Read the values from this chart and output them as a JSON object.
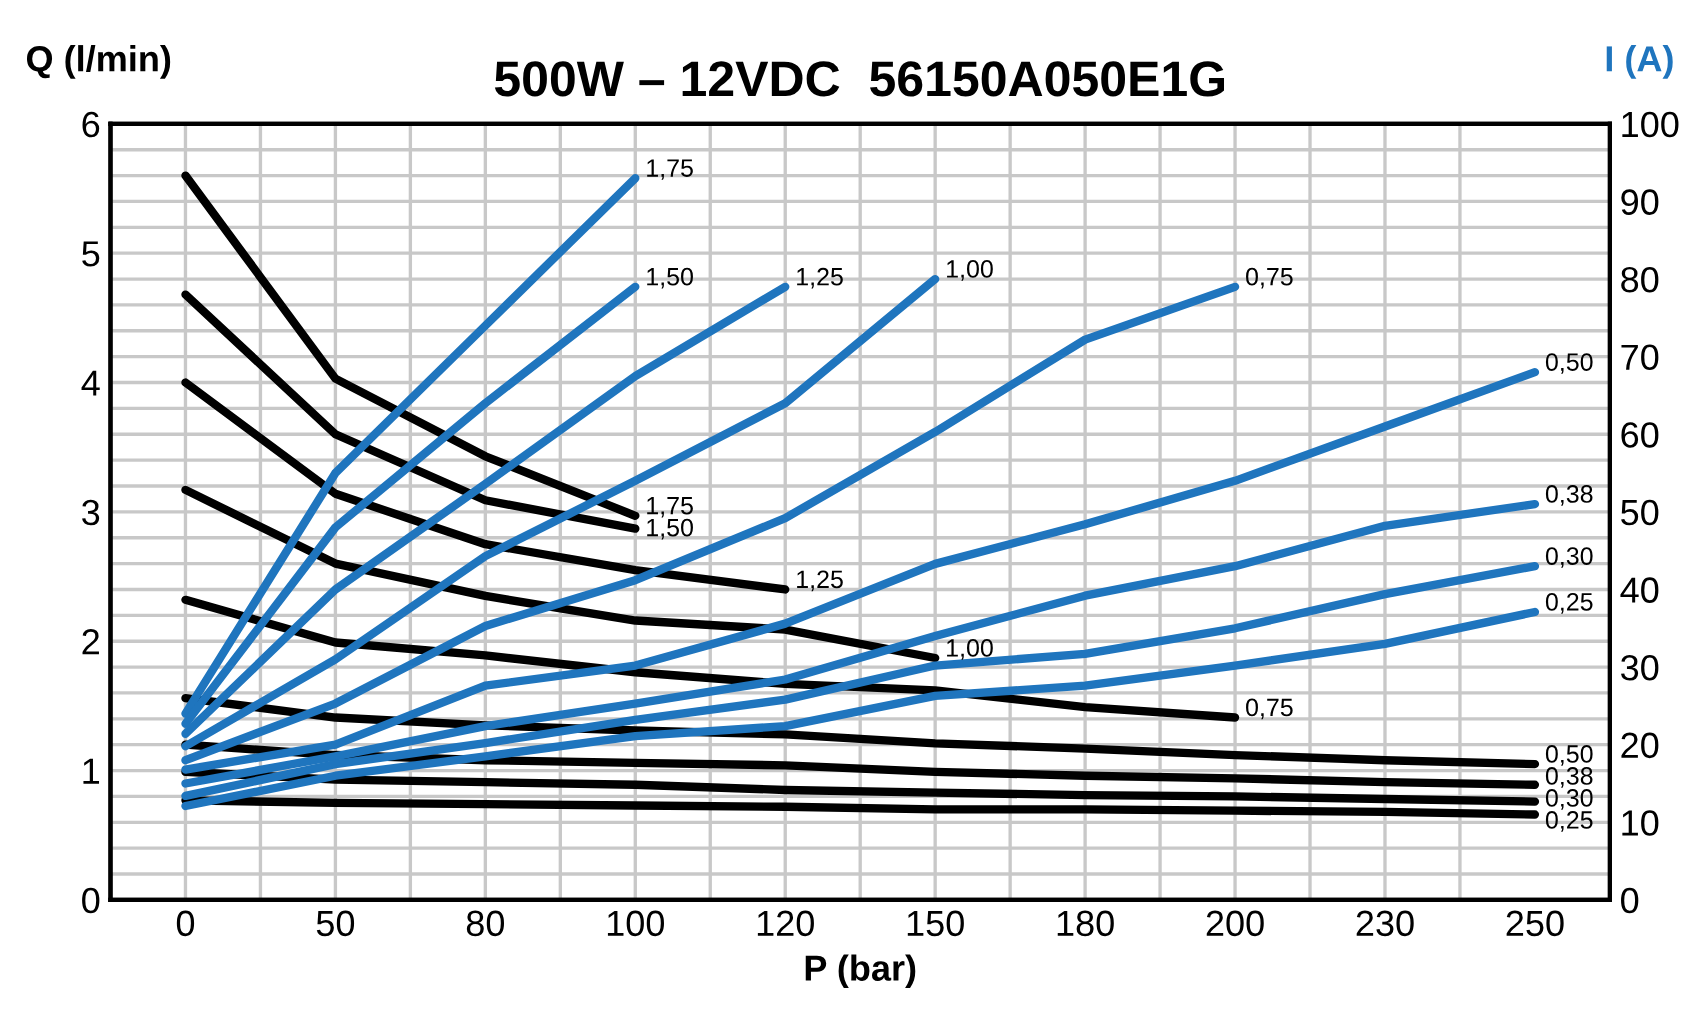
{
  "chart_data": {
    "type": "line",
    "title": "500W – 12VDC  56150A050E1G",
    "xlabel": "P (bar)",
    "ylabel": "Q (l/min)",
    "y2label": "I (A)",
    "categories": [
      "0",
      "50",
      "80",
      "100",
      "120",
      "150",
      "180",
      "200",
      "230",
      "250"
    ],
    "ylim": [
      0,
      6
    ],
    "yticks": [
      0,
      {
        "value": 0.2,
        "label": null
      },
      {
        "value": 0.4,
        "label": null
      },
      {
        "value": 0.6,
        "label": null
      },
      {
        "value": 0.8,
        "label": null
      },
      1,
      {
        "value": 1.2,
        "label": null
      },
      {
        "value": 1.4,
        "label": null
      },
      {
        "value": 1.6,
        "label": null
      },
      {
        "value": 1.8,
        "label": null
      },
      2,
      {
        "value": 2.2,
        "label": null
      },
      {
        "value": 2.4,
        "label": null
      },
      {
        "value": 2.6,
        "label": null
      },
      {
        "value": 2.8,
        "label": null
      },
      3,
      {
        "value": 3.2,
        "label": null
      },
      {
        "value": 3.4,
        "label": null
      },
      {
        "value": 3.6,
        "label": null
      },
      {
        "value": 3.8,
        "label": null
      },
      4,
      {
        "value": 4.2,
        "label": null
      },
      {
        "value": 4.4,
        "label": null
      },
      {
        "value": 4.6,
        "label": null
      },
      {
        "value": 4.8,
        "label": null
      },
      5,
      {
        "value": 5.2,
        "label": null
      },
      {
        "value": 5.4,
        "label": null
      },
      {
        "value": 5.6,
        "label": null
      },
      {
        "value": 5.8,
        "label": null
      },
      6
    ],
    "y2lim": [
      0,
      100
    ],
    "y2ticks": [
      0,
      10,
      20,
      30,
      40,
      50,
      60,
      70,
      80,
      90,
      100
    ],
    "grid": true,
    "legend": false,
    "marker": "none",
    "line_style": "solid",
    "series": [
      {
        "name": "1,75",
        "color": "#000000",
        "values": [
          5.6,
          4.03,
          3.43,
          2.97,
          null,
          null,
          null,
          null,
          null,
          null
        ]
      },
      {
        "name": "1,50",
        "color": "#000000",
        "values": [
          4.68,
          3.6,
          3.09,
          2.87,
          null,
          null,
          null,
          null,
          null,
          null
        ]
      },
      {
        "name": "1,25",
        "color": "#000000",
        "values": [
          4.0,
          3.14,
          2.75,
          2.55,
          2.4,
          null,
          null,
          null,
          null,
          null
        ]
      },
      {
        "name": "1,00",
        "color": "#000000",
        "values": [
          3.17,
          2.6,
          2.35,
          2.16,
          2.09,
          1.87,
          null,
          null,
          null,
          null
        ]
      },
      {
        "name": "0,75",
        "color": "#000000",
        "values": [
          2.32,
          1.99,
          1.89,
          1.76,
          1.67,
          1.62,
          1.49,
          1.41,
          null,
          null
        ]
      },
      {
        "name": "0,50",
        "color": "#000000",
        "values": [
          1.56,
          1.41,
          1.35,
          1.31,
          1.28,
          1.21,
          1.17,
          1.12,
          1.08,
          1.05
        ]
      },
      {
        "name": "0,38",
        "color": "#000000",
        "values": [
          1.2,
          1.12,
          1.08,
          1.06,
          1.04,
          0.99,
          0.96,
          0.94,
          0.91,
          0.89
        ]
      },
      {
        "name": "0,30",
        "color": "#000000",
        "values": [
          0.99,
          0.93,
          0.91,
          0.89,
          0.85,
          0.83,
          0.81,
          0.8,
          0.78,
          0.76
        ]
      },
      {
        "name": "0,25",
        "color": "#000000",
        "values": [
          0.77,
          0.75,
          0.74,
          0.73,
          0.72,
          0.7,
          0.7,
          0.69,
          0.68,
          0.66
        ]
      },
      {
        "name": "1,75",
        "color": "#1f75be",
        "axis": "y2",
        "values": [
          24,
          55,
          74,
          93,
          null,
          null,
          null,
          null,
          null,
          null
        ]
      },
      {
        "name": "1,50",
        "color": "#1f75be",
        "axis": "y2",
        "values": [
          22.7,
          48,
          64,
          79,
          null,
          null,
          null,
          null,
          null,
          null
        ]
      },
      {
        "name": "1,25",
        "color": "#1f75be",
        "axis": "y2",
        "values": [
          21.4,
          40,
          53.6,
          67.5,
          79,
          null,
          null,
          null,
          null,
          null
        ]
      },
      {
        "name": "1,00",
        "color": "#1f75be",
        "axis": "y2",
        "values": [
          19.8,
          31,
          44.3,
          54,
          64,
          80,
          null,
          null,
          null,
          null
        ]
      },
      {
        "name": "0,75",
        "color": "#1f75be",
        "axis": "y2",
        "values": [
          18,
          25.3,
          35.3,
          41.2,
          49.2,
          60.3,
          72.2,
          79,
          null,
          null
        ]
      },
      {
        "name": "0,50",
        "color": "#1f75be",
        "axis": "y2",
        "values": [
          16.8,
          20,
          27.6,
          30.2,
          35.6,
          43.3,
          48.4,
          54,
          61,
          68
        ]
      },
      {
        "name": "0,38",
        "color": "#1f75be",
        "axis": "y2",
        "values": [
          15,
          18.5,
          22.4,
          25.3,
          28.4,
          34,
          39.2,
          43,
          48.2,
          51
        ]
      },
      {
        "name": "0,30",
        "color": "#1f75be",
        "axis": "y2",
        "values": [
          13.4,
          17.5,
          20.2,
          23.2,
          25.8,
          30.2,
          31.7,
          35,
          39.4,
          43
        ]
      },
      {
        "name": "0,25",
        "color": "#1f75be",
        "axis": "y2",
        "values": [
          12.1,
          16,
          18.5,
          21.1,
          22.4,
          26.3,
          27.6,
          30.2,
          33,
          37.1
        ]
      }
    ]
  }
}
